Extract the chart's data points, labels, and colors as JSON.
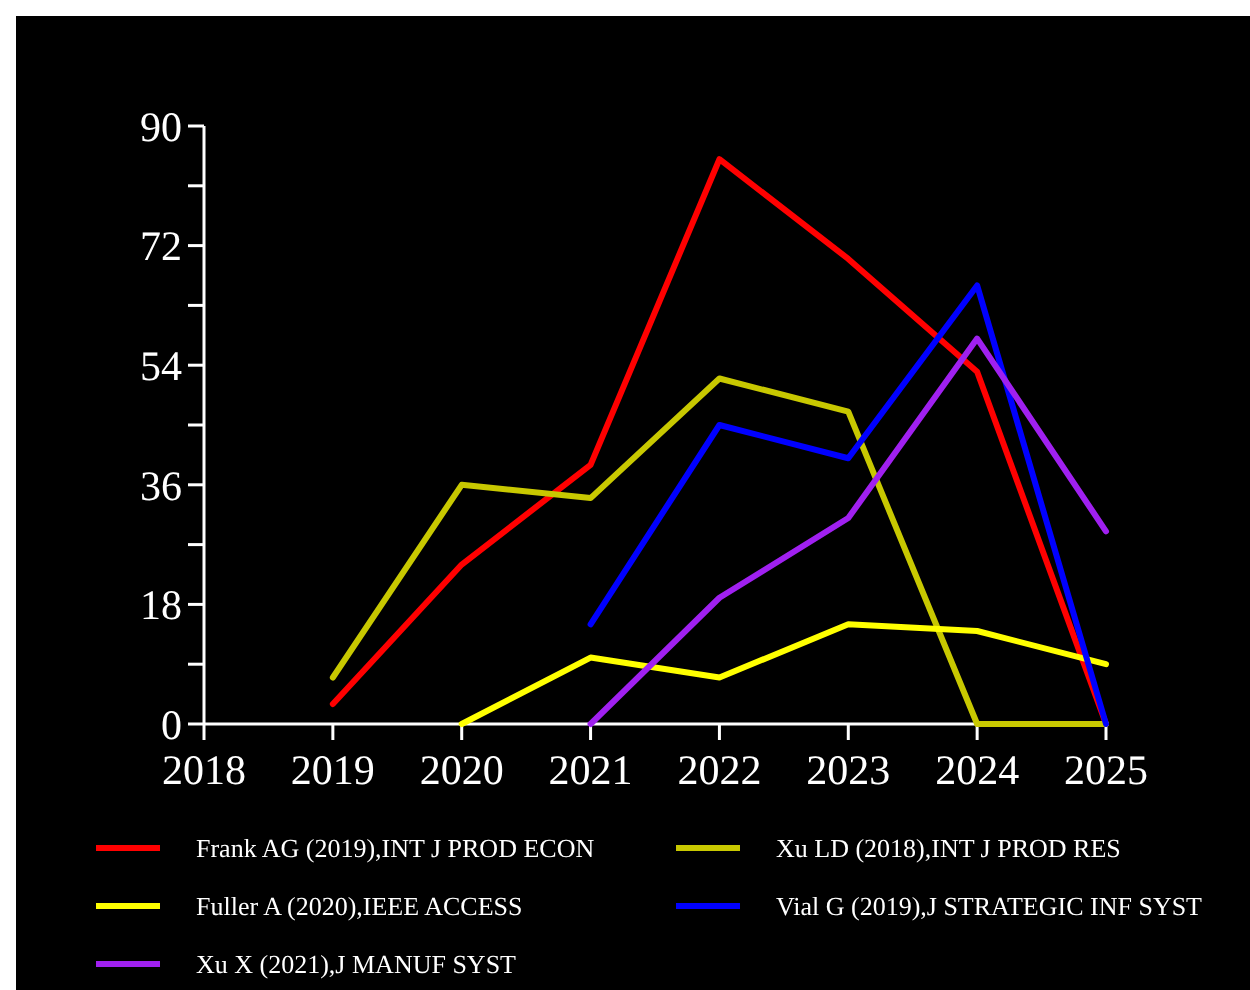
{
  "chart_data": {
    "type": "line",
    "x": [
      2019,
      2020,
      2021,
      2022,
      2023,
      2024,
      2025
    ],
    "xlim": [
      2018,
      2025
    ],
    "xticks": [
      2018,
      2019,
      2020,
      2021,
      2022,
      2023,
      2024,
      2025
    ],
    "ylim": [
      0,
      90
    ],
    "yticks": [
      0,
      {
        "value": 9,
        "label": null
      },
      18,
      {
        "value": 27,
        "label": null
      },
      36,
      {
        "value": 45,
        "label": null
      },
      54,
      {
        "value": 63,
        "label": null
      },
      72,
      {
        "value": 81,
        "label": null
      },
      90
    ],
    "grid": false,
    "legend": "bottom",
    "line_style": "solid",
    "marker": "none",
    "series": [
      {
        "name": "Frank AG (2019),INT J PROD ECON",
        "color": "#ff0000",
        "values": [
          3,
          24,
          39,
          85,
          70,
          53,
          0
        ]
      },
      {
        "name": "Xu LD (2018),INT J PROD RES",
        "color": "#c8c800",
        "values": [
          7,
          36,
          34,
          52,
          47,
          0,
          0
        ]
      },
      {
        "name": "Fuller A (2020),IEEE ACCESS",
        "color": "#ffff00",
        "values": [
          null,
          0,
          10,
          7,
          15,
          14,
          9
        ]
      },
      {
        "name": "Vial G (2019),J STRATEGIC INF SYST",
        "color": "#0000ff",
        "values": [
          null,
          null,
          15,
          45,
          40,
          66,
          0
        ]
      },
      {
        "name": "Xu X (2021),J MANUF SYST",
        "color": "#a020f0",
        "values": [
          null,
          null,
          0,
          19,
          31,
          58,
          29
        ]
      }
    ]
  }
}
